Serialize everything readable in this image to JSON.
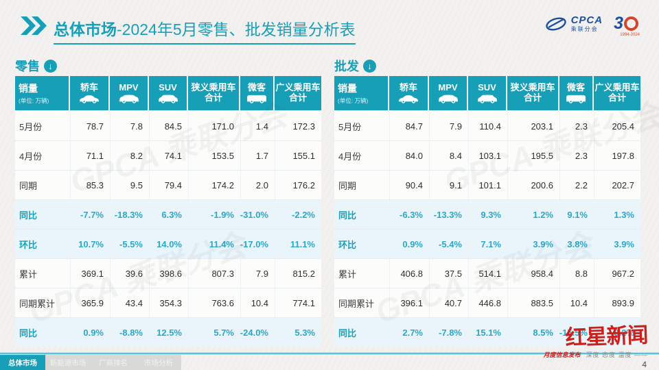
{
  "header": {
    "title_bold": "总体市场",
    "title_rest": "-2024年5月零售、批发销量分析表"
  },
  "logos": {
    "cpca_acronym": "CPCA",
    "cpca_name": "乘联分会",
    "anniversary_number": "3",
    "anniversary_years": "1994-2024"
  },
  "news": {
    "name": "红星新闻",
    "note": "月度信息发布",
    "slogan": "深度 态度 温度 ——"
  },
  "watermark": {
    "text": "GPCA 乘联分会"
  },
  "page_number": "4",
  "colors": {
    "accent_teal": "#189fb8",
    "highlight_row_bg": "#e9f5fa",
    "highlight_value_text": "#2aa8ca",
    "news_red": "#cf1f1a",
    "logo_navy": "#1d4fa0",
    "background": "#f2f1ef"
  },
  "footer": {
    "tabs": [
      {
        "label": "总体市场",
        "active": true
      },
      {
        "label": "新能源市场",
        "active": false
      },
      {
        "label": "厂商排名",
        "active": false
      },
      {
        "label": "市场分析",
        "active": false
      }
    ]
  },
  "chart_data": [
    {
      "type": "table",
      "title": "零售",
      "row_header_label": "销量",
      "row_header_note": "(单位: 万辆)",
      "columns": [
        "轿车",
        "MPV",
        "SUV",
        "狭义乘用车合计",
        "微客",
        "广义乘用车合计"
      ],
      "column_icons": [
        "sedan-icon",
        "mpv-icon",
        "suv-icon",
        "",
        "minibus-icon",
        ""
      ],
      "rows": [
        {
          "label": "5月份",
          "values": [
            "78.7",
            "7.8",
            "84.5",
            "171.0",
            "1.4",
            "172.3"
          ],
          "highlight": false
        },
        {
          "label": "4月份",
          "values": [
            "71.1",
            "8.2",
            "74.1",
            "153.5",
            "1.7",
            "155.1"
          ],
          "highlight": false
        },
        {
          "label": "同期",
          "values": [
            "85.3",
            "9.5",
            "79.4",
            "174.2",
            "2.0",
            "176.2"
          ],
          "highlight": false
        },
        {
          "label": "同比",
          "values": [
            "-7.7%",
            "-18.3%",
            "6.3%",
            "-1.9%",
            "-31.0%",
            "-2.2%"
          ],
          "highlight": true
        },
        {
          "label": "环比",
          "values": [
            "10.7%",
            "-5.5%",
            "14.0%",
            "11.4%",
            "-17.0%",
            "11.1%"
          ],
          "highlight": true
        },
        {
          "label": "累计",
          "values": [
            "369.1",
            "39.6",
            "398.6",
            "807.3",
            "7.9",
            "815.2"
          ],
          "highlight": false
        },
        {
          "label": "同期累计",
          "values": [
            "365.9",
            "43.4",
            "354.3",
            "763.6",
            "10.4",
            "774.1"
          ],
          "highlight": false
        },
        {
          "label": "同比",
          "values": [
            "0.9%",
            "-8.8%",
            "12.5%",
            "5.7%",
            "-24.0%",
            "5.3%"
          ],
          "highlight": true
        }
      ]
    },
    {
      "type": "table",
      "title": "批发",
      "row_header_label": "销量",
      "row_header_note": "(单位: 万辆)",
      "columns": [
        "轿车",
        "MPV",
        "SUV",
        "狭义乘用车合计",
        "微客",
        "广义乘用车合计"
      ],
      "column_icons": [
        "sedan-icon",
        "mpv-icon",
        "suv-icon",
        "",
        "minibus-icon",
        ""
      ],
      "rows": [
        {
          "label": "5月份",
          "values": [
            "84.7",
            "7.9",
            "110.4",
            "203.1",
            "2.3",
            "205.4"
          ],
          "highlight": false
        },
        {
          "label": "4月份",
          "values": [
            "84.0",
            "8.4",
            "103.1",
            "195.5",
            "2.3",
            "197.8"
          ],
          "highlight": false
        },
        {
          "label": "同期",
          "values": [
            "90.4",
            "9.1",
            "101.1",
            "200.6",
            "2.2",
            "202.7"
          ],
          "highlight": false
        },
        {
          "label": "同比",
          "values": [
            "-6.3%",
            "-13.3%",
            "9.3%",
            "1.2%",
            "9.1%",
            "1.3%"
          ],
          "highlight": true
        },
        {
          "label": "环比",
          "values": [
            "0.9%",
            "-5.4%",
            "7.1%",
            "3.9%",
            "3.8%",
            "3.9%"
          ],
          "highlight": true
        },
        {
          "label": "累计",
          "values": [
            "406.8",
            "37.5",
            "514.1",
            "958.4",
            "8.8",
            "967.2"
          ],
          "highlight": false
        },
        {
          "label": "同期累计",
          "values": [
            "396.1",
            "40.7",
            "446.8",
            "883.5",
            "10.4",
            "893.9"
          ],
          "highlight": false
        },
        {
          "label": "同比",
          "values": [
            "2.7%",
            "-7.8%",
            "15.1%",
            "8.5%",
            "-15.5%",
            "8.2%"
          ],
          "highlight": true
        }
      ]
    }
  ]
}
